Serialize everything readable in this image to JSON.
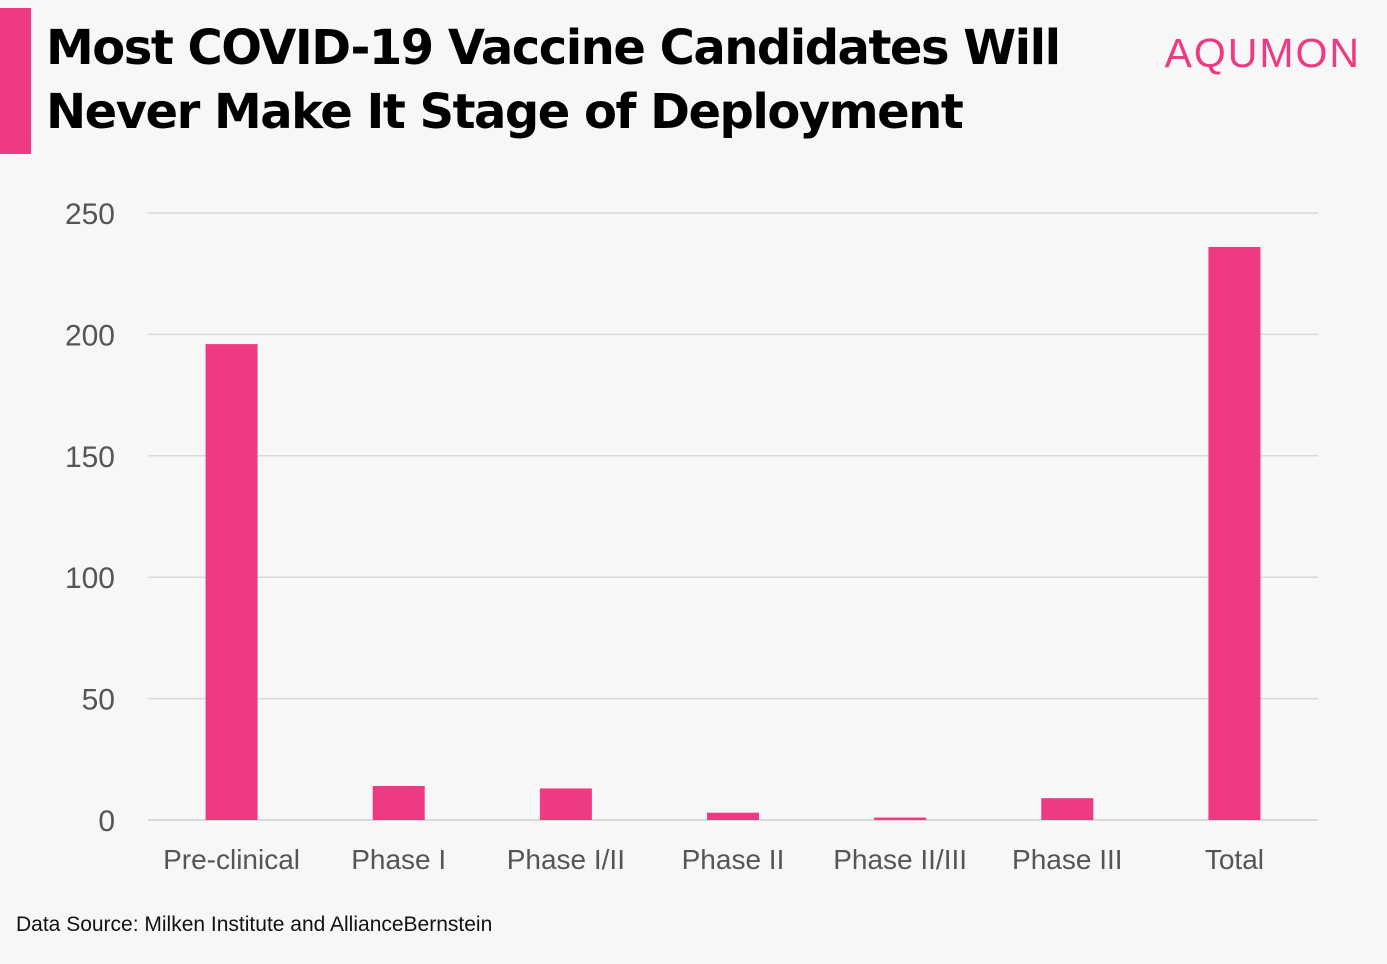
{
  "header": {
    "title_line1": "Most COVID-19 Vaccine Candidates Will",
    "title_line2": "Never Make It Stage of Deployment",
    "logo": "AQUMON"
  },
  "colors": {
    "accent": "#ee3a83",
    "bar": "#ee3a83",
    "grid": "#d9d9d9",
    "tick_text": "#555555"
  },
  "chart_data": {
    "type": "bar",
    "title": "Most COVID-19 Vaccine Candidates Will Never Make It Stage of Deployment",
    "categories": [
      "Pre-clinical",
      "Phase I",
      "Phase I/II",
      "Phase II",
      "Phase II/III",
      "Phase III",
      "Total"
    ],
    "values": [
      196,
      14,
      13,
      3,
      1,
      9,
      236
    ],
    "xlabel": "",
    "ylabel": "",
    "ylim": [
      0,
      250
    ],
    "yticks": [
      0,
      50,
      100,
      150,
      200,
      250
    ],
    "grid": true,
    "legend": "none"
  },
  "footer": {
    "source": "Data Source: Milken Institute and AllianceBernstein"
  }
}
